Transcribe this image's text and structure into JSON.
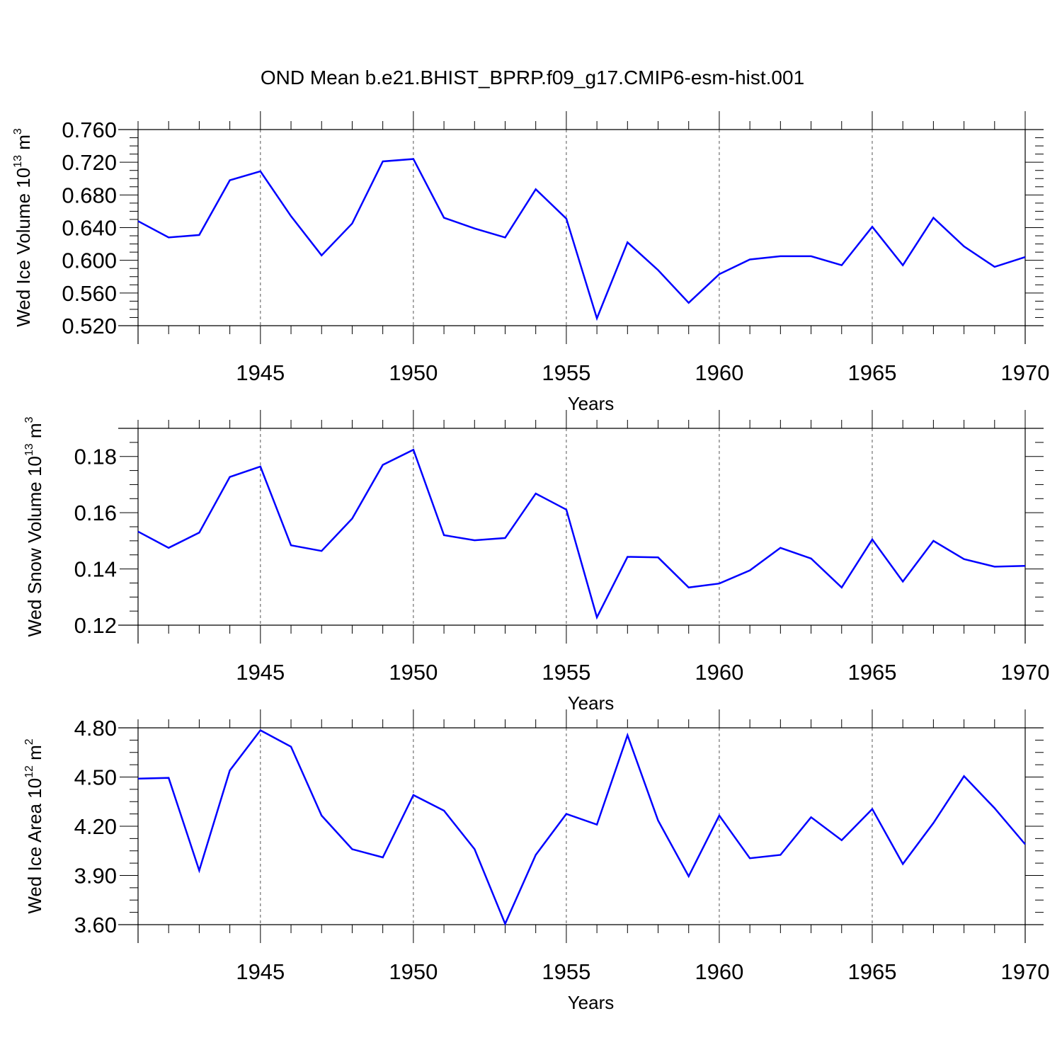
{
  "title": "OND Mean b.e21.BHIST_BPRP.f09_g17.CMIP6-esm-hist.001",
  "colors": {
    "line": "#0000ff",
    "axis": "#000000",
    "grid": "#555555"
  },
  "chart_data": [
    {
      "type": "line",
      "ylabel": {
        "base": "Wed Ice Volume 10",
        "exp": "13",
        "unit": " m",
        "unit_exp": "3"
      },
      "xlabel": "Years",
      "xlim": [
        1941,
        1970
      ],
      "ylim": [
        0.52,
        0.76
      ],
      "yticks": [
        0.52,
        0.56,
        0.6,
        0.64,
        0.68,
        0.72,
        0.76
      ],
      "ytick_labels": [
        "0.520",
        "0.560",
        "0.600",
        "0.640",
        "0.680",
        "0.720",
        "0.760"
      ],
      "xticks": [
        1945,
        1950,
        1955,
        1960,
        1965,
        1970
      ],
      "xtick_labels": [
        "1945",
        "1950",
        "1955",
        "1960",
        "1965",
        "1970"
      ],
      "grid": "vertical dashed at major x ticks",
      "series": [
        {
          "name": "Wed Ice Volume",
          "x": [
            1941,
            1942,
            1943,
            1944,
            1945,
            1946,
            1947,
            1948,
            1949,
            1950,
            1951,
            1952,
            1953,
            1954,
            1955,
            1956,
            1957,
            1958,
            1959,
            1960,
            1961,
            1962,
            1963,
            1964,
            1965,
            1966,
            1967,
            1968,
            1969,
            1970
          ],
          "values": [
            0.648,
            0.628,
            0.631,
            0.698,
            0.709,
            0.654,
            0.606,
            0.645,
            0.721,
            0.724,
            0.652,
            0.639,
            0.628,
            0.687,
            0.651,
            0.529,
            0.622,
            0.588,
            0.548,
            0.583,
            0.601,
            0.605,
            0.605,
            0.594,
            0.641,
            0.594,
            0.652,
            0.617,
            0.592,
            0.604
          ]
        }
      ]
    },
    {
      "type": "line",
      "ylabel": {
        "base": "Wed Snow Volume 10",
        "exp": "13",
        "unit": " m",
        "unit_exp": "3"
      },
      "xlabel": "Years",
      "xlim": [
        1941,
        1970
      ],
      "ylim": [
        0.12,
        0.19
      ],
      "yticks": [
        0.12,
        0.14,
        0.16,
        0.18
      ],
      "ytick_labels": [
        "0.12",
        "0.14",
        "0.16",
        "0.18"
      ],
      "xticks": [
        1945,
        1950,
        1955,
        1960,
        1965,
        1970
      ],
      "xtick_labels": [
        "1945",
        "1950",
        "1955",
        "1960",
        "1965",
        "1970"
      ],
      "grid": "vertical dashed at major x ticks",
      "series": [
        {
          "name": "Wed Snow Volume",
          "x": [
            1941,
            1942,
            1943,
            1944,
            1945,
            1946,
            1947,
            1948,
            1949,
            1950,
            1951,
            1952,
            1953,
            1954,
            1955,
            1956,
            1957,
            1958,
            1959,
            1960,
            1961,
            1962,
            1963,
            1964,
            1965,
            1966,
            1967,
            1968,
            1969,
            1970
          ],
          "values": [
            0.1533,
            0.1475,
            0.1529,
            0.1727,
            0.1764,
            0.1484,
            0.1464,
            0.1579,
            0.177,
            0.1824,
            0.152,
            0.1502,
            0.151,
            0.1668,
            0.1611,
            0.1228,
            0.1443,
            0.1441,
            0.1334,
            0.1348,
            0.1395,
            0.1475,
            0.1437,
            0.1334,
            0.1505,
            0.1355,
            0.15,
            0.1435,
            0.1408,
            0.1411
          ]
        }
      ]
    },
    {
      "type": "line",
      "ylabel": {
        "base": "Wed Ice Area 10",
        "exp": "12",
        "unit": " m",
        "unit_exp": "2"
      },
      "xlabel": "Years",
      "xlim": [
        1941,
        1970
      ],
      "ylim": [
        3.6,
        4.8
      ],
      "yticks": [
        3.6,
        3.9,
        4.2,
        4.5,
        4.8
      ],
      "ytick_labels": [
        "3.60",
        "3.90",
        "4.20",
        "4.50",
        "4.80"
      ],
      "xticks": [
        1945,
        1950,
        1955,
        1960,
        1965,
        1970
      ],
      "xtick_labels": [
        "1945",
        "1950",
        "1955",
        "1960",
        "1965",
        "1970"
      ],
      "grid": "vertical dashed at major x ticks",
      "series": [
        {
          "name": "Wed Ice Area",
          "x": [
            1941,
            1942,
            1943,
            1944,
            1945,
            1946,
            1947,
            1948,
            1949,
            1950,
            1951,
            1952,
            1953,
            1954,
            1955,
            1956,
            1957,
            1958,
            1959,
            1960,
            1961,
            1962,
            1963,
            1964,
            1965,
            1966,
            1967,
            1968,
            1969,
            1970
          ],
          "values": [
            4.49,
            4.495,
            3.93,
            4.54,
            4.785,
            4.685,
            4.265,
            4.06,
            4.01,
            4.39,
            4.295,
            4.06,
            3.605,
            4.025,
            4.275,
            4.21,
            4.755,
            4.235,
            3.895,
            4.265,
            4.005,
            4.025,
            4.255,
            4.115,
            4.305,
            3.97,
            4.22,
            4.505,
            4.31,
            4.09
          ]
        }
      ]
    }
  ]
}
